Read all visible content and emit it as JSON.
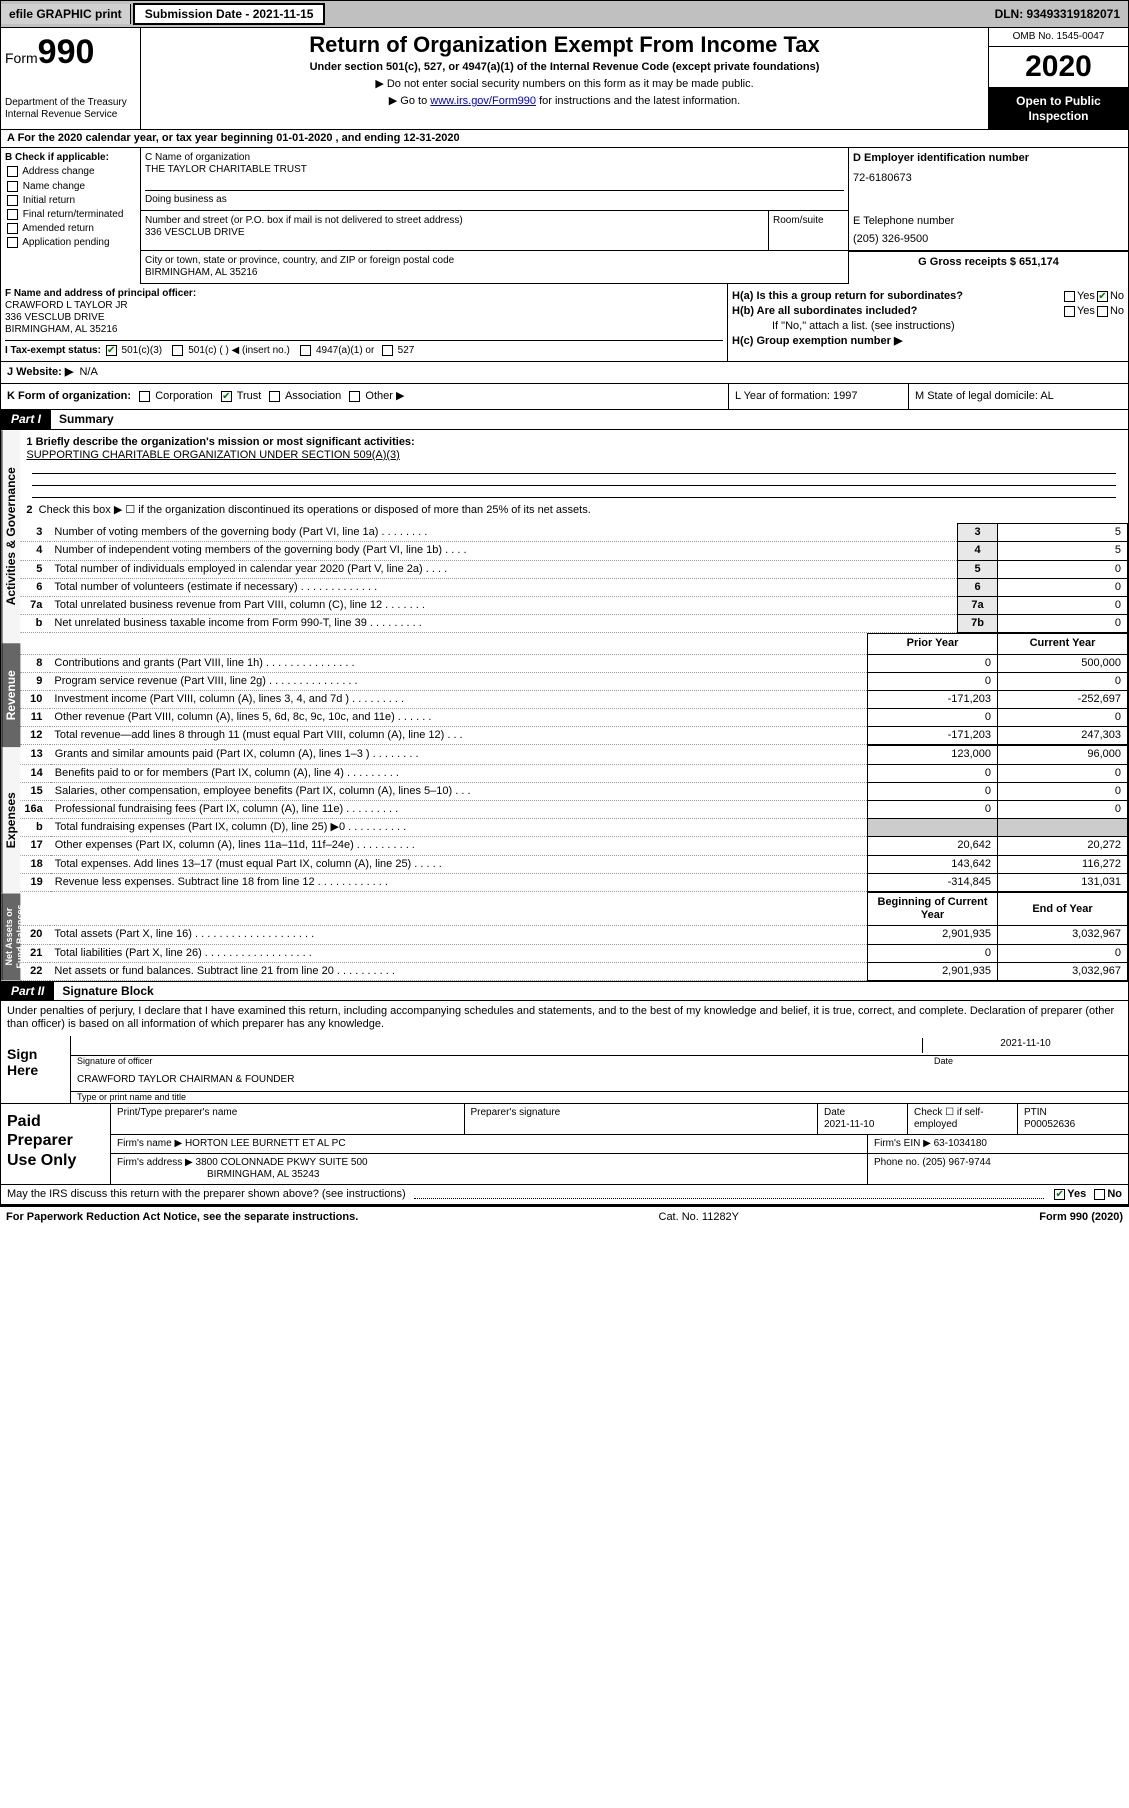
{
  "topbar": {
    "efile_label": "efile GRAPHIC print",
    "subdate_label": "Submission Date - 2021-11-15",
    "dln_label": "DLN: 93493319182071"
  },
  "header": {
    "form_label": "Form",
    "form_number": "990",
    "dept": "Department of the Treasury",
    "irs": "Internal Revenue Service",
    "title": "Return of Organization Exempt From Income Tax",
    "subtitle": "Under section 501(c), 527, or 4947(a)(1) of the Internal Revenue Code (except private foundations)",
    "line1": "▶ Do not enter social security numbers on this form as it may be made public.",
    "line2_pre": "▶ Go to ",
    "line2_link": "www.irs.gov/Form990",
    "line2_post": " for instructions and the latest information.",
    "omb": "OMB No. 1545-0047",
    "year": "2020",
    "open": "Open to Public Inspection"
  },
  "lineA": "A For the 2020 calendar year, or tax year beginning 01-01-2020   , and ending 12-31-2020",
  "boxB": {
    "header": "B Check if applicable:",
    "items": [
      "Address change",
      "Name change",
      "Initial return",
      "Final return/terminated",
      "Amended return",
      "Application pending"
    ]
  },
  "boxC": {
    "label": "C Name of organization",
    "name": "THE TAYLOR CHARITABLE TRUST",
    "dba_label": "Doing business as",
    "addr_label": "Number and street (or P.O. box if mail is not delivered to street address)",
    "addr": "336 VESCLUB DRIVE",
    "room_label": "Room/suite",
    "city_label": "City or town, state or province, country, and ZIP or foreign postal code",
    "city": "BIRMINGHAM, AL  35216"
  },
  "boxD": {
    "label": "D Employer identification number",
    "value": "72-6180673"
  },
  "boxE": {
    "label": "E Telephone number",
    "value": "(205) 326-9500"
  },
  "boxG": {
    "label": "G Gross receipts $ 651,174"
  },
  "boxF": {
    "label": "F  Name and address of principal officer:",
    "name": "CRAWFORD L TAYLOR JR",
    "addr": "336 VESCLUB DRIVE",
    "city": "BIRMINGHAM, AL  35216"
  },
  "boxH": {
    "ha": "H(a)  Is this a group return for subordinates?",
    "hb": "H(b)  Are all subordinates included?",
    "hb_note": "If \"No,\" attach a list. (see instructions)",
    "hc": "H(c)  Group exemption number ▶",
    "yes": "Yes",
    "no": "No"
  },
  "boxI": {
    "label": "I  Tax-exempt status:",
    "opts": [
      "501(c)(3)",
      "501(c) (  ) ◀ (insert no.)",
      "4947(a)(1) or",
      "527"
    ]
  },
  "boxJ": {
    "label": "J  Website: ▶",
    "value": "N/A"
  },
  "boxK": {
    "label": "K Form of organization:",
    "opts": [
      "Corporation",
      "Trust",
      "Association",
      "Other ▶"
    ],
    "year_label": "L Year of formation: 1997",
    "state_label": "M State of legal domicile: AL"
  },
  "part1": {
    "label": "Part I",
    "title": "Summary"
  },
  "summary": {
    "q1": "1  Briefly describe the organization's mission or most significant activities:",
    "mission": "SUPPORTING CHARITABLE ORGANIZATION UNDER SECTION 509(A)(3)",
    "q2": "Check this box ▶ ☐  if the organization discontinued its operations or disposed of more than 25% of its net assets.",
    "tabs": {
      "gov": "Activities & Governance",
      "rev": "Revenue",
      "exp": "Expenses",
      "net": "Net Assets or Fund Balances"
    },
    "rows_gov": [
      {
        "n": "3",
        "label": "Number of voting members of the governing body (Part VI, line 1a)",
        "box": "3",
        "val": "5"
      },
      {
        "n": "4",
        "label": "Number of independent voting members of the governing body (Part VI, line 1b)",
        "box": "4",
        "val": "5"
      },
      {
        "n": "5",
        "label": "Total number of individuals employed in calendar year 2020 (Part V, line 2a)",
        "box": "5",
        "val": "0"
      },
      {
        "n": "6",
        "label": "Total number of volunteers (estimate if necessary)",
        "box": "6",
        "val": "0"
      },
      {
        "n": "7a",
        "label": "Total unrelated business revenue from Part VIII, column (C), line 12",
        "box": "7a",
        "val": "0"
      },
      {
        "n": "b",
        "label": "Net unrelated business taxable income from Form 990-T, line 39",
        "box": "7b",
        "val": "0"
      }
    ],
    "prior_hdr": "Prior Year",
    "curr_hdr": "Current Year",
    "rows_rev": [
      {
        "n": "8",
        "label": "Contributions and grants (Part VIII, line 1h)",
        "prior": "0",
        "curr": "500,000"
      },
      {
        "n": "9",
        "label": "Program service revenue (Part VIII, line 2g)",
        "prior": "0",
        "curr": "0"
      },
      {
        "n": "10",
        "label": "Investment income (Part VIII, column (A), lines 3, 4, and 7d )",
        "prior": "-171,203",
        "curr": "-252,697"
      },
      {
        "n": "11",
        "label": "Other revenue (Part VIII, column (A), lines 5, 6d, 8c, 9c, 10c, and 11e)",
        "prior": "0",
        "curr": "0"
      },
      {
        "n": "12",
        "label": "Total revenue—add lines 8 through 11 (must equal Part VIII, column (A), line 12)",
        "prior": "-171,203",
        "curr": "247,303"
      }
    ],
    "rows_exp": [
      {
        "n": "13",
        "label": "Grants and similar amounts paid (Part IX, column (A), lines 1–3 )",
        "prior": "123,000",
        "curr": "96,000"
      },
      {
        "n": "14",
        "label": "Benefits paid to or for members (Part IX, column (A), line 4)",
        "prior": "0",
        "curr": "0"
      },
      {
        "n": "15",
        "label": "Salaries, other compensation, employee benefits (Part IX, column (A), lines 5–10)",
        "prior": "0",
        "curr": "0"
      },
      {
        "n": "16a",
        "label": "Professional fundraising fees (Part IX, column (A), line 11e)",
        "prior": "0",
        "curr": "0"
      },
      {
        "n": "b",
        "label": "Total fundraising expenses (Part IX, column (D), line 25) ▶0",
        "prior": "",
        "curr": ""
      },
      {
        "n": "17",
        "label": "Other expenses (Part IX, column (A), lines 11a–11d, 11f–24e)",
        "prior": "20,642",
        "curr": "20,272"
      },
      {
        "n": "18",
        "label": "Total expenses. Add lines 13–17 (must equal Part IX, column (A), line 25)",
        "prior": "143,642",
        "curr": "116,272"
      },
      {
        "n": "19",
        "label": "Revenue less expenses. Subtract line 18 from line 12",
        "prior": "-314,845",
        "curr": "131,031"
      }
    ],
    "begin_hdr": "Beginning of Current Year",
    "end_hdr": "End of Year",
    "rows_net": [
      {
        "n": "20",
        "label": "Total assets (Part X, line 16)",
        "prior": "2,901,935",
        "curr": "3,032,967"
      },
      {
        "n": "21",
        "label": "Total liabilities (Part X, line 26)",
        "prior": "0",
        "curr": "0"
      },
      {
        "n": "22",
        "label": "Net assets or fund balances. Subtract line 21 from line 20",
        "prior": "2,901,935",
        "curr": "3,032,967"
      }
    ]
  },
  "part2": {
    "label": "Part II",
    "title": "Signature Block"
  },
  "sig": {
    "perjury": "Under penalties of perjury, I declare that I have examined this return, including accompanying schedules and statements, and to the best of my knowledge and belief, it is true, correct, and complete. Declaration of preparer (other than officer) is based on all information of which preparer has any knowledge.",
    "sign_here": "Sign Here",
    "sig_officer": "Signature of officer",
    "date_label": "Date",
    "sig_date": "2021-11-10",
    "name": "CRAWFORD TAYLOR  CHAIRMAN & FOUNDER",
    "type_label": "Type or print name and title"
  },
  "paid": {
    "title": "Paid Preparer Use Only",
    "col1": "Print/Type preparer's name",
    "col2": "Preparer's signature",
    "col3_label": "Date",
    "col3_val": "2021-11-10",
    "col4_label": "Check ☐ if self-employed",
    "col5_label": "PTIN",
    "col5_val": "P00052636",
    "firm_label": "Firm's name    ▶",
    "firm": "HORTON LEE BURNETT ET AL PC",
    "ein_label": "Firm's EIN ▶",
    "ein": "63-1034180",
    "addr_label": "Firm's address ▶",
    "addr1": "3800 COLONNADE PKWY SUITE 500",
    "addr2": "BIRMINGHAM, AL  35243",
    "phone_label": "Phone no.",
    "phone": "(205) 967-9744"
  },
  "discuss": "May the IRS discuss this return with the preparer shown above? (see instructions)",
  "footer": {
    "left": "For Paperwork Reduction Act Notice, see the separate instructions.",
    "mid": "Cat. No. 11282Y",
    "right": "Form 990 (2020)"
  }
}
